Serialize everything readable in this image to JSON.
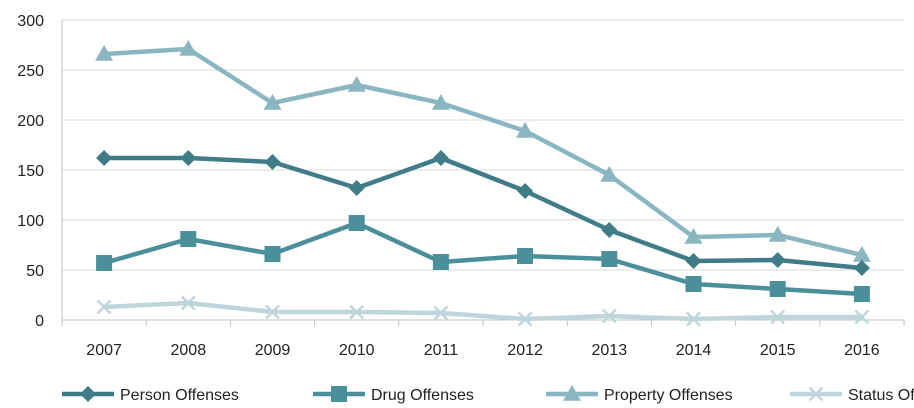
{
  "chart_data": {
    "type": "line",
    "title": "",
    "xlabel": "",
    "ylabel": "",
    "categories": [
      "2007",
      "2008",
      "2009",
      "2010",
      "2011",
      "2012",
      "2013",
      "2014",
      "2015",
      "2016"
    ],
    "ylim": [
      0,
      300
    ],
    "yticks": [
      0,
      50,
      100,
      150,
      200,
      250,
      300
    ],
    "grid": true,
    "legend_position": "bottom",
    "series": [
      {
        "name": "Person Offenses",
        "marker": "diamond",
        "color": "#3F7C87",
        "values": [
          162,
          162,
          158,
          132,
          162,
          129,
          90,
          59,
          60,
          52
        ]
      },
      {
        "name": "Drug Offenses",
        "marker": "square",
        "color": "#4A8F9A",
        "values": [
          57,
          81,
          66,
          97,
          58,
          64,
          61,
          36,
          31,
          26
        ]
      },
      {
        "name": "Property Offenses",
        "marker": "triangle",
        "color": "#8AB6C1",
        "values": [
          266,
          271,
          217,
          235,
          217,
          189,
          145,
          83,
          85,
          65
        ]
      },
      {
        "name": "Status Offenses",
        "marker": "x",
        "color": "#BFD5DC",
        "values": [
          13,
          17,
          8,
          8,
          7,
          1,
          4,
          1,
          3,
          3
        ]
      }
    ]
  }
}
